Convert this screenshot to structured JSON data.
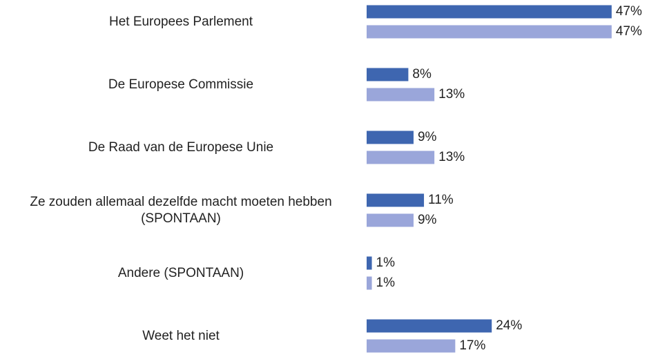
{
  "chart_data": {
    "type": "bar",
    "orientation": "horizontal",
    "categories": [
      "Het Europees Parlement",
      "De Europese Commissie",
      "De Raad van de Europese Unie",
      "Ze zouden allemaal dezelfde macht moeten hebben (SPONTAAN)",
      "Andere (SPONTAAN)",
      "Weet het niet"
    ],
    "series": [
      {
        "color": "#3e66b0",
        "values": [
          47,
          8,
          9,
          11,
          1,
          24
        ],
        "value_labels": [
          "47%",
          "8%",
          "9%",
          "11%",
          "1%",
          "24%"
        ]
      },
      {
        "color": "#9aa6da",
        "values": [
          47,
          13,
          13,
          9,
          1,
          17
        ],
        "value_labels": [
          "47%",
          "13%",
          "13%",
          "9%",
          "1%",
          "17%"
        ]
      }
    ]
  }
}
